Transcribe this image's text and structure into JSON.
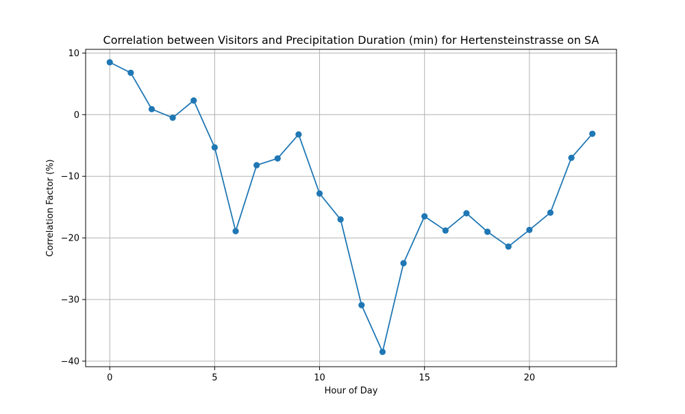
{
  "chart_data": {
    "type": "line",
    "title": "Correlation between Visitors and Precipitation Duration (min) for Hertensteinstrasse on SA",
    "xlabel": "Hour of Day",
    "ylabel": "Correlation Factor (%)",
    "xlim": [
      -1.15,
      24.15
    ],
    "ylim": [
      -40.9,
      10.6
    ],
    "xticks": [
      0,
      5,
      10,
      15,
      20
    ],
    "xtick_labels": [
      "0",
      "5",
      "10",
      "15",
      "20"
    ],
    "yticks": [
      10,
      0,
      -10,
      -20,
      -30,
      -40
    ],
    "ytick_labels": [
      "10",
      "0",
      "−10",
      "−20",
      "−30",
      "−40"
    ],
    "grid": true,
    "marker": "circle",
    "color": "#1f77b4",
    "series": [
      {
        "x": [
          0,
          1,
          2,
          3,
          4,
          5,
          6,
          7,
          8,
          9,
          10,
          11,
          12,
          13,
          14,
          15,
          16,
          17,
          18,
          19,
          20,
          21,
          22,
          23
        ],
        "values": [
          8.5,
          6.8,
          0.9,
          -0.5,
          2.3,
          -5.3,
          -18.9,
          -8.2,
          -7.1,
          -3.2,
          -12.8,
          -17.0,
          -30.9,
          -38.5,
          -24.1,
          -16.5,
          -18.8,
          -16.0,
          -19.0,
          -21.4,
          -18.7,
          -15.9,
          -7.0,
          -3.1
        ]
      }
    ]
  }
}
